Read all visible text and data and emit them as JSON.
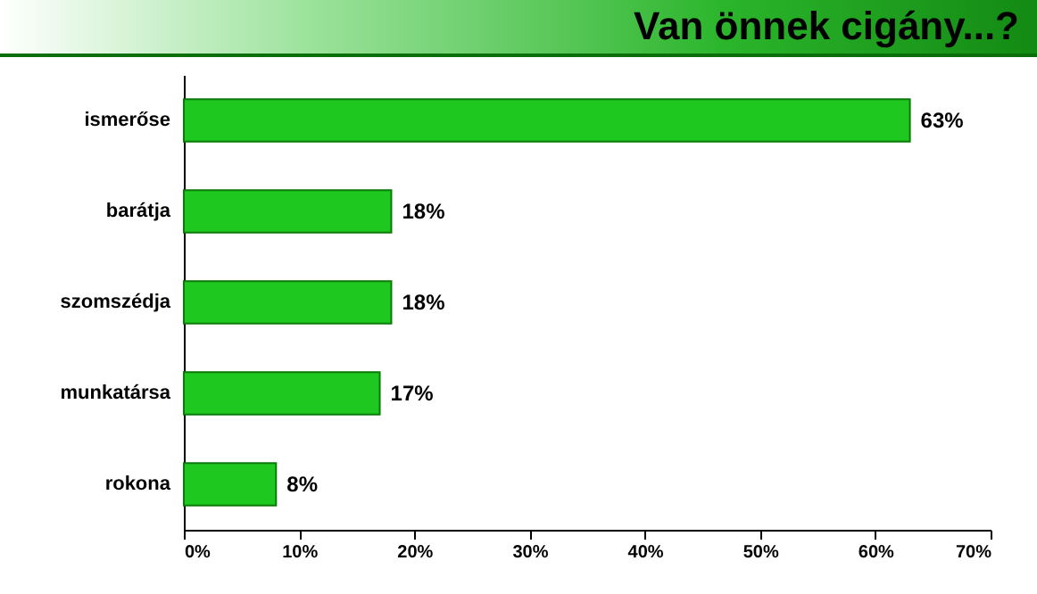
{
  "chart_data": {
    "type": "bar",
    "orientation": "horizontal",
    "title": "Van önnek cigány...?",
    "categories": [
      "ismerőse",
      "barátja",
      "szomszédja",
      "munkatársa",
      "rokona"
    ],
    "values": [
      63,
      18,
      18,
      17,
      8
    ],
    "value_labels": [
      "63%",
      "18%",
      "18%",
      "17%",
      "8%"
    ],
    "color": "#1ec81e",
    "xlim": [
      0,
      70
    ],
    "xticks": [
      {
        "value": 0,
        "label": "0%"
      },
      {
        "value": 10,
        "label": "10%"
      },
      {
        "value": 20,
        "label": "20%"
      },
      {
        "value": 30,
        "label": "30%"
      },
      {
        "value": 40,
        "label": "40%"
      },
      {
        "value": 50,
        "label": "50%"
      },
      {
        "value": 60,
        "label": "60%"
      },
      {
        "value": 70,
        "label": "70%"
      }
    ],
    "grid": false
  }
}
